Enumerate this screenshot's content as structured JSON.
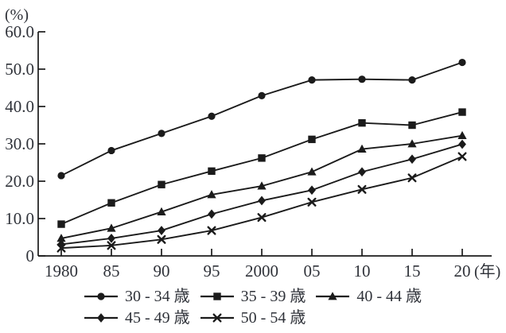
{
  "chart": {
    "background_color": "#ffffff",
    "stroke_color": "#1b1b1b",
    "text_color": "#2f3239"
  },
  "chart_data": {
    "type": "line",
    "title": "",
    "y_axis_unit": "(%)",
    "x_axis_suffix": "(年)",
    "x": [
      1980,
      1985,
      1990,
      1995,
      2000,
      2005,
      2010,
      2015,
      2020
    ],
    "x_tick_labels": [
      "1980",
      "85",
      "90",
      "95",
      "2000",
      "05",
      "10",
      "15",
      "20"
    ],
    "y_ticks": [
      0,
      10,
      20,
      30,
      40,
      50,
      60
    ],
    "y_tick_labels": [
      "0",
      "10.0",
      "20.0",
      "30.0",
      "40.0",
      "50.0",
      "60.0"
    ],
    "ylim": [
      0,
      60
    ],
    "grid": false,
    "legend_position": "bottom",
    "series": [
      {
        "name": "30 - 34 歳",
        "marker": "circle",
        "values": [
          21.5,
          28.2,
          32.8,
          37.4,
          42.9,
          47.1,
          47.3,
          47.1,
          51.8
        ]
      },
      {
        "name": "35 - 39 歳",
        "marker": "square",
        "values": [
          8.5,
          14.2,
          19.1,
          22.7,
          26.2,
          31.2,
          35.6,
          35.0,
          38.5
        ]
      },
      {
        "name": "40 - 44 歳",
        "marker": "triangle",
        "values": [
          4.7,
          7.4,
          11.8,
          16.4,
          18.7,
          22.5,
          28.6,
          30.0,
          32.2
        ]
      },
      {
        "name": "45 - 49 歳",
        "marker": "diamond",
        "values": [
          3.1,
          4.7,
          6.8,
          11.2,
          14.8,
          17.6,
          22.5,
          25.9,
          29.9
        ]
      },
      {
        "name": "50 - 54 歳",
        "marker": "x",
        "values": [
          2.1,
          2.8,
          4.4,
          6.8,
          10.3,
          14.4,
          17.8,
          20.9,
          26.6
        ]
      }
    ]
  }
}
